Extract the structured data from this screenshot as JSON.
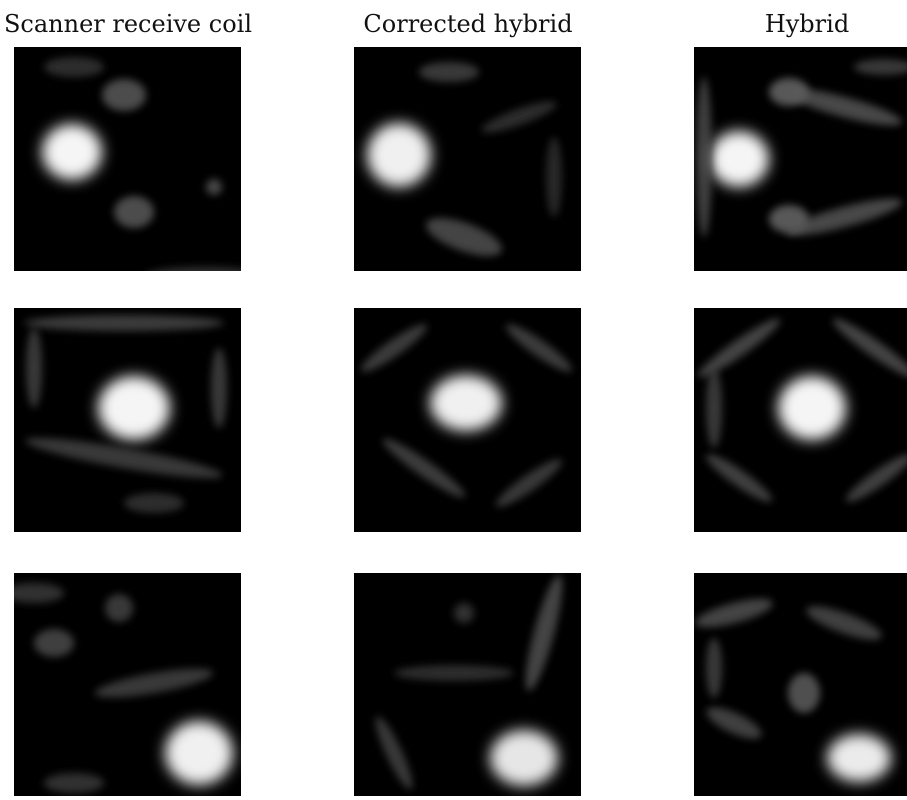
{
  "columns": [
    {
      "title": "Scanner receive coil"
    },
    {
      "title": "Corrected hybrid"
    },
    {
      "title": "Hybrid"
    }
  ]
}
